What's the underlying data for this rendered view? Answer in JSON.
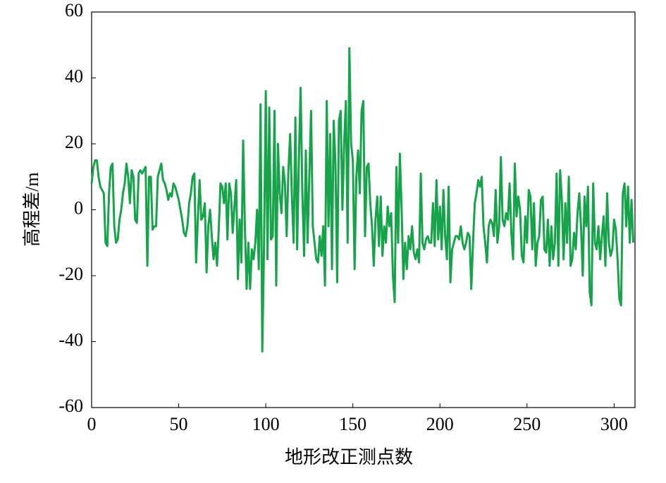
{
  "chart_data": {
    "type": "line",
    "xlabel": "地形改正测点数",
    "ylabel": "高程差/m",
    "xlim": [
      0,
      312
    ],
    "xticks": [
      0,
      50,
      100,
      150,
      200,
      250,
      300
    ],
    "ylim": [
      -60,
      60
    ],
    "yticks": [
      -60,
      -40,
      -20,
      0,
      20,
      40,
      60
    ],
    "series": [
      {
        "color": "#16a34a",
        "x": [
          0,
          1,
          2,
          3,
          4,
          5,
          6,
          7,
          8,
          9,
          10,
          11,
          12,
          13,
          14,
          15,
          16,
          17,
          18,
          19,
          20,
          21,
          22,
          23,
          24,
          25,
          26,
          27,
          28,
          29,
          30,
          31,
          32,
          33,
          34,
          35,
          36,
          37,
          38,
          39,
          40,
          41,
          42,
          43,
          44,
          45,
          46,
          47,
          48,
          49,
          50,
          51,
          52,
          53,
          54,
          55,
          56,
          57,
          58,
          59,
          60,
          61,
          62,
          63,
          64,
          65,
          66,
          67,
          68,
          69,
          70,
          71,
          72,
          73,
          74,
          75,
          76,
          77,
          78,
          79,
          80,
          81,
          82,
          83,
          84,
          85,
          86,
          87,
          88,
          89,
          90,
          91,
          92,
          93,
          94,
          95,
          96,
          97,
          98,
          99,
          100,
          101,
          102,
          103,
          104,
          105,
          106,
          107,
          108,
          109,
          110,
          111,
          112,
          113,
          114,
          115,
          116,
          117,
          118,
          119,
          120,
          121,
          122,
          123,
          124,
          125,
          126,
          127,
          128,
          129,
          130,
          131,
          132,
          133,
          134,
          135,
          136,
          137,
          138,
          139,
          140,
          141,
          142,
          143,
          144,
          145,
          146,
          147,
          148,
          149,
          150,
          151,
          152,
          153,
          154,
          155,
          156,
          157,
          158,
          159,
          160,
          161,
          162,
          163,
          164,
          165,
          166,
          167,
          168,
          169,
          170,
          171,
          172,
          173,
          174,
          175,
          176,
          177,
          178,
          179,
          180,
          181,
          182,
          183,
          184,
          185,
          186,
          187,
          188,
          189,
          190,
          191,
          192,
          193,
          194,
          195,
          196,
          197,
          198,
          199,
          200,
          201,
          202,
          203,
          204,
          205,
          206,
          207,
          208,
          209,
          210,
          211,
          212,
          213,
          214,
          215,
          216,
          217,
          218,
          219,
          220,
          221,
          222,
          223,
          224,
          225,
          226,
          227,
          228,
          229,
          230,
          231,
          232,
          233,
          234,
          235,
          236,
          237,
          238,
          239,
          240,
          241,
          242,
          243,
          244,
          245,
          246,
          247,
          248,
          249,
          250,
          251,
          252,
          253,
          254,
          255,
          256,
          257,
          258,
          259,
          260,
          261,
          262,
          263,
          264,
          265,
          266,
          267,
          268,
          269,
          270,
          271,
          272,
          273,
          274,
          275,
          276,
          277,
          278,
          279,
          280,
          281,
          282,
          283,
          284,
          285,
          286,
          287,
          288,
          289,
          290,
          291,
          292,
          293,
          294,
          295,
          296,
          297,
          298,
          299,
          300,
          301,
          302,
          303,
          304,
          305,
          306,
          307,
          308,
          309,
          310,
          311
        ],
        "values": [
          8,
          13,
          15,
          15,
          10,
          7,
          6,
          5,
          -10,
          -11,
          5,
          13,
          14,
          -5,
          -10,
          -9,
          -3,
          0,
          5,
          8,
          14,
          10,
          2,
          12,
          10,
          -3,
          -4,
          11,
          12,
          11,
          12,
          13,
          -17,
          10,
          10,
          -6,
          -5,
          -5,
          10,
          12,
          14,
          9,
          8,
          6,
          3,
          5,
          4,
          8,
          7,
          5,
          3,
          0,
          -3,
          -7,
          -8,
          -5,
          2,
          5,
          10,
          11,
          -16,
          -3,
          9,
          -3,
          -2,
          2,
          -19,
          -5,
          0,
          -8,
          -15,
          -10,
          -17,
          -6,
          8,
          7,
          2,
          8,
          -9,
          8,
          5,
          -7,
          1,
          9,
          -21,
          -3,
          -16,
          21,
          -5,
          -24,
          -10,
          -24,
          -12,
          -15,
          -10,
          0,
          -18,
          32,
          -43,
          -11,
          36,
          -15,
          31,
          -9,
          -8,
          30,
          -23,
          20,
          5,
          -1,
          13,
          8,
          -8,
          12,
          23,
          4,
          -10,
          28,
          -12,
          15,
          37,
          5,
          -14,
          18,
          -10,
          10,
          30,
          -5,
          -10,
          -15,
          -16,
          -8,
          -14,
          -5,
          -23,
          33,
          -5,
          23,
          -18,
          27,
          14,
          -22,
          27,
          30,
          0,
          20,
          33,
          -10,
          49,
          20,
          15,
          -18,
          10,
          18,
          5,
          30,
          33,
          -8,
          13,
          14,
          2,
          -5,
          -17,
          -3,
          4,
          -11,
          4,
          -14,
          -5,
          -10,
          1,
          -5,
          -1,
          -20,
          -28,
          13,
          -10,
          17,
          0,
          -21,
          -10,
          -18,
          -8,
          -12,
          -5,
          -13,
          -15,
          -12,
          -16,
          11,
          -10,
          -12,
          -9,
          -8,
          -10,
          -10,
          2,
          -11,
          9,
          -9,
          1,
          -12,
          6,
          -8,
          -15,
          7,
          -22,
          -12,
          -10,
          -8,
          -8,
          -9,
          -5,
          -10,
          -12,
          -10,
          -7,
          -8,
          -24,
          -10,
          2,
          5,
          9,
          7,
          10,
          -5,
          -10,
          -16,
          -5,
          -3,
          -4,
          -8,
          6,
          -10,
          -5,
          16,
          -3,
          -5,
          -1,
          -3,
          8,
          -7,
          -15,
          14,
          -2,
          4,
          0,
          -14,
          -16,
          -2,
          -10,
          6,
          4,
          -12,
          2,
          -17,
          -10,
          -8,
          3,
          4,
          -12,
          -13,
          -3,
          -17,
          -5,
          -15,
          -10,
          11,
          -17,
          12,
          3,
          -15,
          2,
          -10,
          10,
          -17,
          -15,
          -7,
          -12,
          -1,
          5,
          -5,
          -20,
          4,
          -5,
          7,
          -25,
          -29,
          8,
          -10,
          -12,
          -5,
          -15,
          -8,
          -2,
          -17,
          5,
          -10,
          -14,
          -12,
          -3,
          -6,
          -15,
          -27,
          -29,
          5,
          8,
          -5,
          7,
          -10,
          3,
          -10
        ]
      }
    ]
  }
}
